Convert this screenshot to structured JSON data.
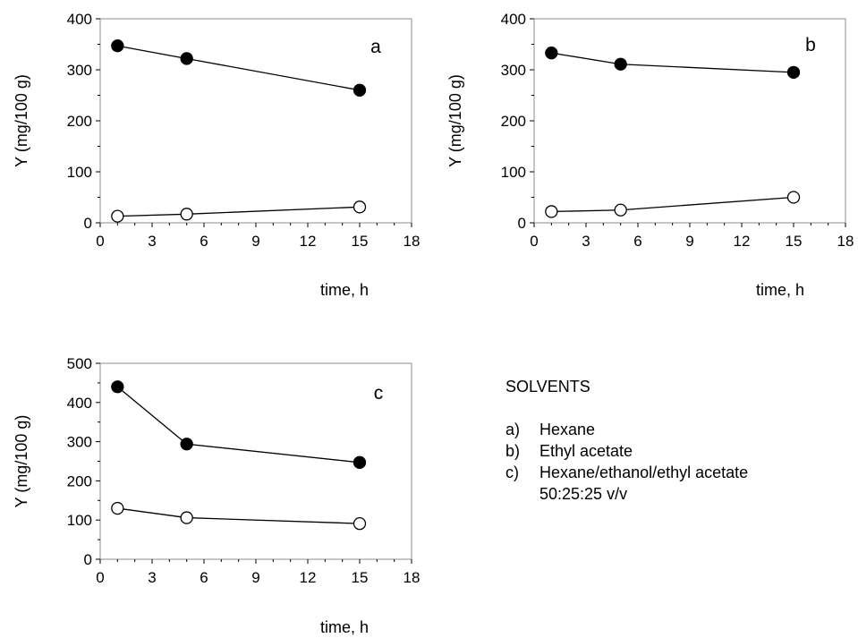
{
  "chart_data": [
    {
      "type": "line",
      "panel_label": "a",
      "xlabel": "time, h",
      "ylabel": "Y (mg/100 g)",
      "xlim": [
        0,
        18
      ],
      "ylim": [
        0,
        400
      ],
      "xticks": [
        "0",
        "3",
        "6",
        "9",
        "12",
        "15",
        "18"
      ],
      "yticks": [
        "0",
        "100",
        "200",
        "300",
        "400"
      ],
      "grid": false,
      "series": [
        {
          "marker": "filled-circle",
          "color": "#000000",
          "x": [
            1,
            5,
            15
          ],
          "y": [
            347,
            322,
            260
          ]
        },
        {
          "marker": "open-circle",
          "color": "#000000",
          "x": [
            1,
            5,
            15
          ],
          "y": [
            13,
            17,
            31
          ]
        }
      ]
    },
    {
      "type": "line",
      "panel_label": "b",
      "xlabel": "time, h",
      "ylabel": "Y (mg/100 g)",
      "xlim": [
        0,
        18
      ],
      "ylim": [
        0,
        400
      ],
      "xticks": [
        "0",
        "3",
        "6",
        "9",
        "12",
        "15",
        "18"
      ],
      "yticks": [
        "0",
        "100",
        "200",
        "300",
        "400"
      ],
      "grid": false,
      "series": [
        {
          "marker": "filled-circle",
          "color": "#000000",
          "x": [
            1,
            5,
            15
          ],
          "y": [
            333,
            311,
            295
          ]
        },
        {
          "marker": "open-circle",
          "color": "#000000",
          "x": [
            1,
            5,
            15
          ],
          "y": [
            22,
            25,
            50
          ]
        }
      ]
    },
    {
      "type": "line",
      "panel_label": "c",
      "xlabel": "time, h",
      "ylabel": "Y (mg/100 g)",
      "xlim": [
        0,
        18
      ],
      "ylim": [
        0,
        500
      ],
      "xticks": [
        "0",
        "3",
        "6",
        "9",
        "12",
        "15",
        "18"
      ],
      "yticks": [
        "0",
        "100",
        "200",
        "300",
        "400",
        "500"
      ],
      "grid": false,
      "series": [
        {
          "marker": "filled-circle",
          "color": "#000000",
          "x": [
            1,
            5,
            15
          ],
          "y": [
            440,
            294,
            247
          ]
        },
        {
          "marker": "open-circle",
          "color": "#000000",
          "x": [
            1,
            5,
            15
          ],
          "y": [
            130,
            106,
            91
          ]
        }
      ]
    }
  ],
  "legend": {
    "title": "SOLVENTS",
    "items": [
      {
        "key": "a)",
        "lines": [
          "Hexane"
        ]
      },
      {
        "key": "b)",
        "lines": [
          "Ethyl acetate"
        ]
      },
      {
        "key": "c)",
        "lines": [
          "Hexane/ethanol/ethyl acetate",
          "50:25:25 v/v"
        ]
      }
    ]
  }
}
